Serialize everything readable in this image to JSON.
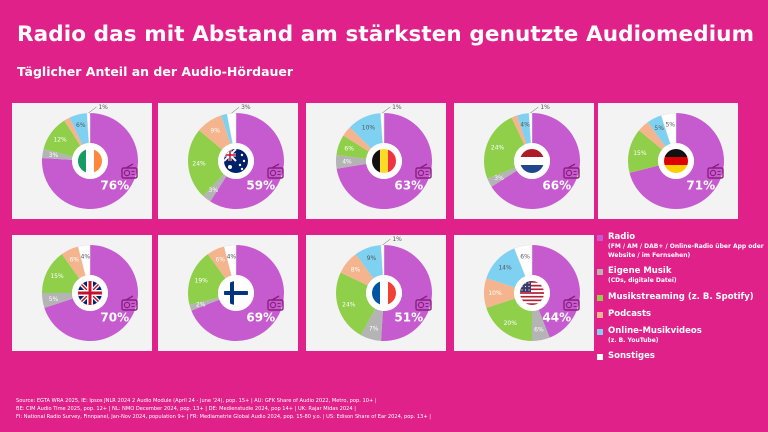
{
  "header": {
    "title": "Radio das mit Abstand am stärksten genutzte Audiomedium",
    "subtitle": "Täglicher Anteil an der Audio-Hördauer"
  },
  "colors": {
    "background": "#e0218a",
    "Radio": "#c65bd0",
    "Eigene Musik": "#b4b4b4",
    "Musikstreaming": "#8fcf4a",
    "Podcasts": "#f4b48e",
    "Online-Musikvideos": "#7fd1f2",
    "Sonstiges": "#ffffff",
    "card": "#f3f3f3"
  },
  "legend": [
    {
      "key": "Radio",
      "label": "Radio",
      "note": "(FM / AM / DAB+ / Online-Radio über App oder Website / im Fernsehen)"
    },
    {
      "key": "Eigene Musik",
      "label": "Eigene Musik",
      "note": "(CDs, digitale Datei)"
    },
    {
      "key": "Musikstreaming",
      "label": "Musikstreaming (z. B. Spotify)",
      "note": ""
    },
    {
      "key": "Podcasts",
      "label": "Podcasts",
      "note": ""
    },
    {
      "key": "Online-Musikvideos",
      "label": "Online-Musikvideos",
      "note": "(z. B. YouTube)"
    },
    {
      "key": "Sonstiges",
      "label": "Sonstiges",
      "note": ""
    }
  ],
  "chart_data": [
    {
      "type": "pie",
      "country": "IE",
      "flag": "ireland-flag",
      "labels": [
        "Radio",
        "Eigene Musik",
        "Musikstreaming",
        "Podcasts",
        "Online-Musikvideos",
        "Sonstiges"
      ],
      "values": [
        76,
        3,
        12,
        2,
        6,
        1
      ],
      "value_labels": [
        "76%",
        "3%",
        "12%",
        "",
        "6%",
        "1%"
      ]
    },
    {
      "type": "pie",
      "country": "AU",
      "flag": "australia-flag",
      "labels": [
        "Radio",
        "Eigene Musik",
        "Musikstreaming",
        "Podcasts",
        "Online-Musikvideos",
        "Sonstiges"
      ],
      "values": [
        59,
        3,
        24,
        9,
        2,
        3
      ],
      "value_labels": [
        "59%",
        "3%",
        "24%",
        "9%",
        "",
        "3%"
      ]
    },
    {
      "type": "pie",
      "country": "BE",
      "flag": "belgium-flag",
      "labels": [
        "Radio",
        "Eigene Musik",
        "Musikstreaming",
        "Podcasts",
        "Online-Musikvideos",
        "Sonstiges"
      ],
      "values": [
        63,
        4,
        6,
        3,
        10,
        1
      ],
      "value_labels": [
        "63%",
        "4%",
        "6%",
        "",
        "10%",
        "1%"
      ]
    },
    {
      "type": "pie",
      "country": "NL",
      "flag": "netherlands-flag",
      "labels": [
        "Radio",
        "Eigene Musik",
        "Musikstreaming",
        "Podcasts",
        "Online-Musikvideos",
        "Sonstiges"
      ],
      "values": [
        66,
        3,
        24,
        2,
        4,
        1
      ],
      "value_labels": [
        "66%",
        "3%",
        "24%",
        "",
        "4%",
        "1%"
      ]
    },
    {
      "type": "pie",
      "country": "DE",
      "flag": "germany-flag",
      "labels": [
        "Radio",
        "Eigene Musik",
        "Musikstreaming",
        "Podcasts",
        "Online-Musikvideos",
        "Sonstiges"
      ],
      "values": [
        71,
        0,
        15,
        4,
        5,
        5
      ],
      "value_labels": [
        "71%",
        "",
        "15%",
        "",
        "5%",
        "5%"
      ]
    },
    {
      "type": "pie",
      "country": "UK",
      "flag": "uk-flag",
      "labels": [
        "Radio",
        "Eigene Musik",
        "Musikstreaming",
        "Podcasts",
        "Online-Musikvideos",
        "Sonstiges"
      ],
      "values": [
        70,
        5,
        15,
        6,
        0,
        4
      ],
      "value_labels": [
        "70%",
        "5%",
        "15%",
        "6%",
        "",
        "4%"
      ]
    },
    {
      "type": "pie",
      "country": "FI",
      "flag": "finland-flag",
      "labels": [
        "Radio",
        "Eigene Musik",
        "Musikstreaming",
        "Podcasts",
        "Online-Musikvideos",
        "Sonstiges"
      ],
      "values": [
        69,
        2,
        19,
        6,
        0,
        4
      ],
      "value_labels": [
        "69%",
        "2%",
        "19%",
        "6%",
        "",
        "4%"
      ]
    },
    {
      "type": "pie",
      "country": "FR",
      "flag": "france-flag",
      "labels": [
        "Radio",
        "Eigene Musik",
        "Musikstreaming",
        "Podcasts",
        "Online-Musikvideos",
        "Sonstiges"
      ],
      "values": [
        51,
        7,
        24,
        8,
        9,
        1
      ],
      "value_labels": [
        "51%",
        "7%",
        "24%",
        "8%",
        "9%",
        "1%"
      ]
    },
    {
      "type": "pie",
      "country": "US",
      "flag": "usa-flag",
      "labels": [
        "Radio",
        "Eigene Musik",
        "Musikstreaming",
        "Podcasts",
        "Online-Musikvideos",
        "Sonstiges"
      ],
      "values": [
        44,
        6,
        20,
        10,
        14,
        6
      ],
      "value_labels": [
        "44%",
        "6%",
        "20%",
        "10%",
        "14%",
        "6%"
      ]
    }
  ],
  "source": [
    "Source: EGTA WRA 2025, IE: Ipsos JNLR 2024 2 Audio Module (April 24 - June '24), pop. 15+ | AU: GFK Share of Audio 2022, Metro, pop. 10+ |",
    "BE: CIM Audio Time 2025, pop. 12+ | NL: NMO December 2024, pop. 13+ | DE: Medienstudie 2024, pop 14+ | UK: Rajar Midas 2024 |",
    " FI: National Radio Survey, Finnpanel, Jan-Nov 2024, population 9+ | FR: Mediametrie Global Audio 2024, pop. 15-80 y.o. | US: Edison Share of Ear 2024, pop. 13+ |"
  ]
}
